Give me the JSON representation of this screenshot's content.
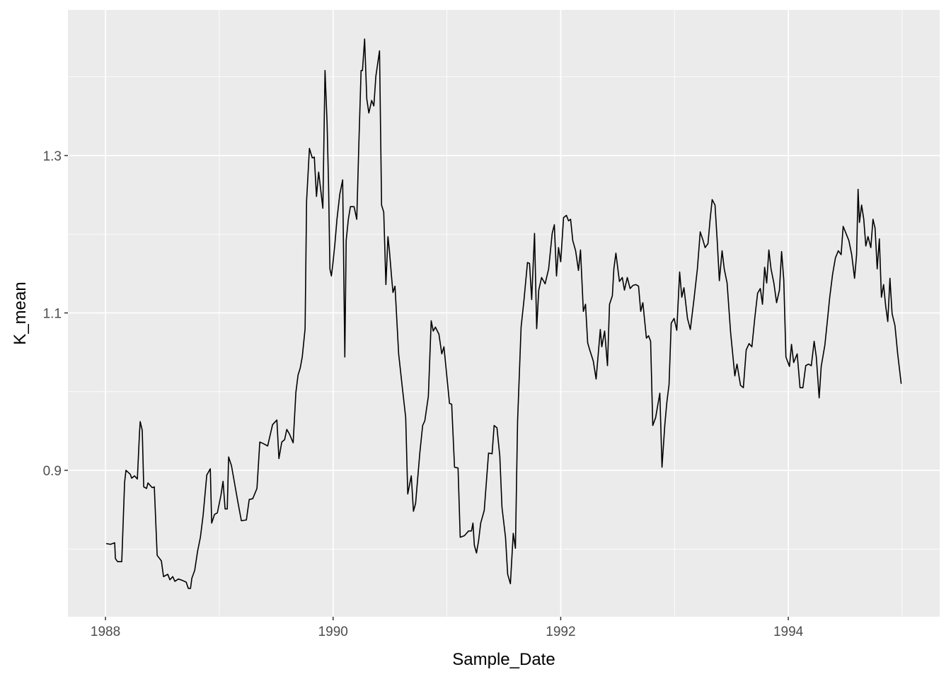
{
  "chart_data": {
    "type": "line",
    "x_label": "Sample_Date",
    "y_label": "K_mean",
    "color": "#000000",
    "grid": true,
    "xlim": [
      1987.67,
      1995.33
    ],
    "ylim": [
      0.714,
      1.485
    ],
    "xticks": [
      1988,
      1990,
      1992,
      1994
    ],
    "yticks": [
      0.9,
      1.1,
      1.3
    ],
    "x_minor_ticks": [
      1989,
      1991,
      1993,
      1995
    ],
    "y_minor_ticks": [
      0.8,
      1.0,
      1.2,
      1.4
    ],
    "x": [
      1988.006,
      1988.044,
      1988.081,
      1988.087,
      1988.106,
      1988.143,
      1988.168,
      1988.18,
      1988.218,
      1988.23,
      1988.255,
      1988.28,
      1988.299,
      1988.305,
      1988.323,
      1988.336,
      1988.361,
      1988.373,
      1988.411,
      1988.429,
      1988.454,
      1988.491,
      1988.51,
      1988.547,
      1988.566,
      1988.591,
      1988.61,
      1988.641,
      1988.678,
      1988.709,
      1988.728,
      1988.747,
      1988.759,
      1988.784,
      1988.809,
      1988.834,
      1988.858,
      1988.89,
      1988.921,
      1988.933,
      1988.958,
      1988.983,
      1989.014,
      1989.033,
      1989.051,
      1989.07,
      1989.082,
      1989.107,
      1989.163,
      1989.194,
      1989.238,
      1989.263,
      1989.294,
      1989.331,
      1989.356,
      1989.387,
      1989.425,
      1989.468,
      1989.506,
      1989.524,
      1989.549,
      1989.574,
      1989.593,
      1989.617,
      1989.649,
      1989.673,
      1989.692,
      1989.711,
      1989.729,
      1989.754,
      1989.767,
      1989.792,
      1989.817,
      1989.835,
      1989.854,
      1989.873,
      1989.91,
      1989.929,
      1989.947,
      1989.96,
      1989.972,
      1989.985,
      1989.997,
      1990.016,
      1990.034,
      1990.059,
      1990.084,
      1990.103,
      1990.115,
      1990.134,
      1990.152,
      1990.184,
      1990.208,
      1990.227,
      1990.246,
      1990.258,
      1990.277,
      1990.296,
      1990.314,
      1990.339,
      1990.358,
      1990.376,
      1990.408,
      1990.426,
      1990.445,
      1990.464,
      1990.482,
      1990.495,
      1990.513,
      1990.526,
      1990.544,
      1990.576,
      1990.607,
      1990.638,
      1990.656,
      1990.687,
      1990.706,
      1990.725,
      1990.762,
      1990.787,
      1990.806,
      1990.837,
      1990.862,
      1990.88,
      1990.899,
      1990.93,
      1990.955,
      1990.974,
      1991.023,
      1991.042,
      1991.067,
      1991.098,
      1991.117,
      1991.154,
      1991.191,
      1991.216,
      1991.229,
      1991.241,
      1991.26,
      1991.278,
      1991.297,
      1991.328,
      1991.366,
      1991.397,
      1991.415,
      1991.44,
      1991.465,
      1991.484,
      1991.515,
      1991.534,
      1991.558,
      1991.583,
      1991.602,
      1991.621,
      1991.652,
      1991.677,
      1991.708,
      1991.726,
      1991.745,
      1991.77,
      1991.789,
      1991.807,
      1991.832,
      1991.863,
      1991.894,
      1991.925,
      1991.944,
      1991.963,
      1991.981,
      1992.0,
      1992.025,
      1992.05,
      1992.069,
      1992.087,
      1992.106,
      1992.131,
      1992.156,
      1992.174,
      1992.199,
      1992.218,
      1992.237,
      1992.255,
      1992.286,
      1992.311,
      1992.33,
      1992.348,
      1992.361,
      1992.386,
      1992.411,
      1992.429,
      1992.454,
      1992.467,
      1992.485,
      1992.516,
      1992.541,
      1992.56,
      1992.585,
      1992.61,
      1992.635,
      1992.66,
      1992.684,
      1992.703,
      1992.722,
      1992.753,
      1992.772,
      1992.79,
      1992.809,
      1992.834,
      1992.871,
      1992.89,
      1992.915,
      1992.933,
      1992.952,
      1992.971,
      1992.996,
      1993.02,
      1993.045,
      1993.064,
      1993.083,
      1993.114,
      1993.139,
      1993.17,
      1993.201,
      1993.226,
      1993.251,
      1993.269,
      1993.294,
      1993.313,
      1993.331,
      1993.356,
      1993.375,
      1993.394,
      1993.418,
      1993.437,
      1993.462,
      1993.493,
      1993.53,
      1993.549,
      1993.58,
      1993.605,
      1993.63,
      1993.655,
      1993.68,
      1993.705,
      1993.73,
      1993.754,
      1993.773,
      1993.792,
      1993.81,
      1993.829,
      1993.848,
      1993.873,
      1993.897,
      1993.922,
      1993.941,
      1993.96,
      1993.979,
      1994.01,
      1994.028,
      1994.047,
      1994.078,
      1994.103,
      1994.128,
      1994.153,
      1994.177,
      1994.202,
      1994.227,
      1994.246,
      1994.271,
      1994.289,
      1994.321,
      1994.339,
      1994.364,
      1994.389,
      1994.414,
      1994.439,
      1994.464,
      1994.482,
      1994.507,
      1994.532,
      1994.557,
      1994.582,
      1994.6,
      1994.613,
      1994.625,
      1994.644,
      1994.663,
      1994.681,
      1994.7,
      1994.725,
      1994.744,
      1994.762,
      1994.781,
      1994.8,
      1994.818,
      1994.837,
      1994.856,
      1994.874,
      1994.893,
      1994.912,
      1994.937,
      1994.961,
      1994.992
    ],
    "values": [
      0.807,
      0.806,
      0.808,
      0.788,
      0.784,
      0.784,
      0.885,
      0.9,
      0.895,
      0.89,
      0.893,
      0.889,
      0.948,
      0.962,
      0.951,
      0.879,
      0.877,
      0.884,
      0.878,
      0.879,
      0.792,
      0.785,
      0.765,
      0.768,
      0.761,
      0.765,
      0.759,
      0.762,
      0.76,
      0.758,
      0.75,
      0.75,
      0.763,
      0.773,
      0.797,
      0.815,
      0.843,
      0.894,
      0.902,
      0.833,
      0.844,
      0.846,
      0.868,
      0.886,
      0.851,
      0.851,
      0.917,
      0.906,
      0.86,
      0.836,
      0.837,
      0.863,
      0.864,
      0.877,
      0.936,
      0.934,
      0.931,
      0.958,
      0.964,
      0.915,
      0.936,
      0.939,
      0.952,
      0.946,
      0.935,
      0.999,
      1.021,
      1.03,
      1.044,
      1.08,
      1.242,
      1.309,
      1.297,
      1.298,
      1.248,
      1.279,
      1.233,
      1.408,
      1.342,
      1.264,
      1.156,
      1.147,
      1.161,
      1.188,
      1.219,
      1.251,
      1.269,
      1.044,
      1.192,
      1.219,
      1.235,
      1.235,
      1.219,
      1.318,
      1.408,
      1.408,
      1.448,
      1.372,
      1.354,
      1.37,
      1.363,
      1.401,
      1.433,
      1.237,
      1.228,
      1.136,
      1.197,
      1.179,
      1.147,
      1.126,
      1.134,
      1.048,
      1.007,
      0.967,
      0.87,
      0.893,
      0.848,
      0.858,
      0.922,
      0.957,
      0.963,
      0.994,
      1.09,
      1.077,
      1.082,
      1.073,
      1.048,
      1.057,
      0.985,
      0.984,
      0.904,
      0.903,
      0.815,
      0.817,
      0.823,
      0.823,
      0.833,
      0.805,
      0.795,
      0.81,
      0.833,
      0.849,
      0.922,
      0.921,
      0.957,
      0.954,
      0.918,
      0.853,
      0.815,
      0.768,
      0.756,
      0.82,
      0.801,
      0.962,
      1.082,
      1.116,
      1.164,
      1.163,
      1.117,
      1.201,
      1.08,
      1.129,
      1.145,
      1.137,
      1.156,
      1.201,
      1.212,
      1.147,
      1.183,
      1.165,
      1.221,
      1.224,
      1.217,
      1.219,
      1.192,
      1.179,
      1.154,
      1.18,
      1.102,
      1.111,
      1.062,
      1.053,
      1.039,
      1.016,
      1.048,
      1.079,
      1.057,
      1.077,
      1.033,
      1.111,
      1.122,
      1.156,
      1.176,
      1.14,
      1.145,
      1.129,
      1.145,
      1.131,
      1.135,
      1.136,
      1.134,
      1.102,
      1.113,
      1.068,
      1.071,
      1.064,
      0.957,
      0.967,
      0.998,
      0.904,
      0.958,
      0.987,
      1.009,
      1.087,
      1.093,
      1.078,
      1.152,
      1.12,
      1.132,
      1.093,
      1.079,
      1.116,
      1.156,
      1.203,
      1.192,
      1.183,
      1.188,
      1.219,
      1.244,
      1.237,
      1.192,
      1.141,
      1.179,
      1.156,
      1.138,
      1.075,
      1.02,
      1.035,
      1.008,
      1.005,
      1.053,
      1.061,
      1.057,
      1.093,
      1.125,
      1.131,
      1.111,
      1.158,
      1.138,
      1.18,
      1.156,
      1.138,
      1.113,
      1.129,
      1.178,
      1.142,
      1.044,
      1.032,
      1.06,
      1.037,
      1.048,
      1.005,
      1.005,
      1.033,
      1.035,
      1.033,
      1.064,
      1.044,
      0.992,
      1.032,
      1.059,
      1.084,
      1.12,
      1.149,
      1.17,
      1.179,
      1.174,
      1.21,
      1.201,
      1.192,
      1.174,
      1.144,
      1.174,
      1.257,
      1.215,
      1.237,
      1.219,
      1.185,
      1.197,
      1.183,
      1.219,
      1.208,
      1.156,
      1.194,
      1.12,
      1.136,
      1.108,
      1.089,
      1.144,
      1.099,
      1.084,
      1.048,
      1.01
    ]
  }
}
